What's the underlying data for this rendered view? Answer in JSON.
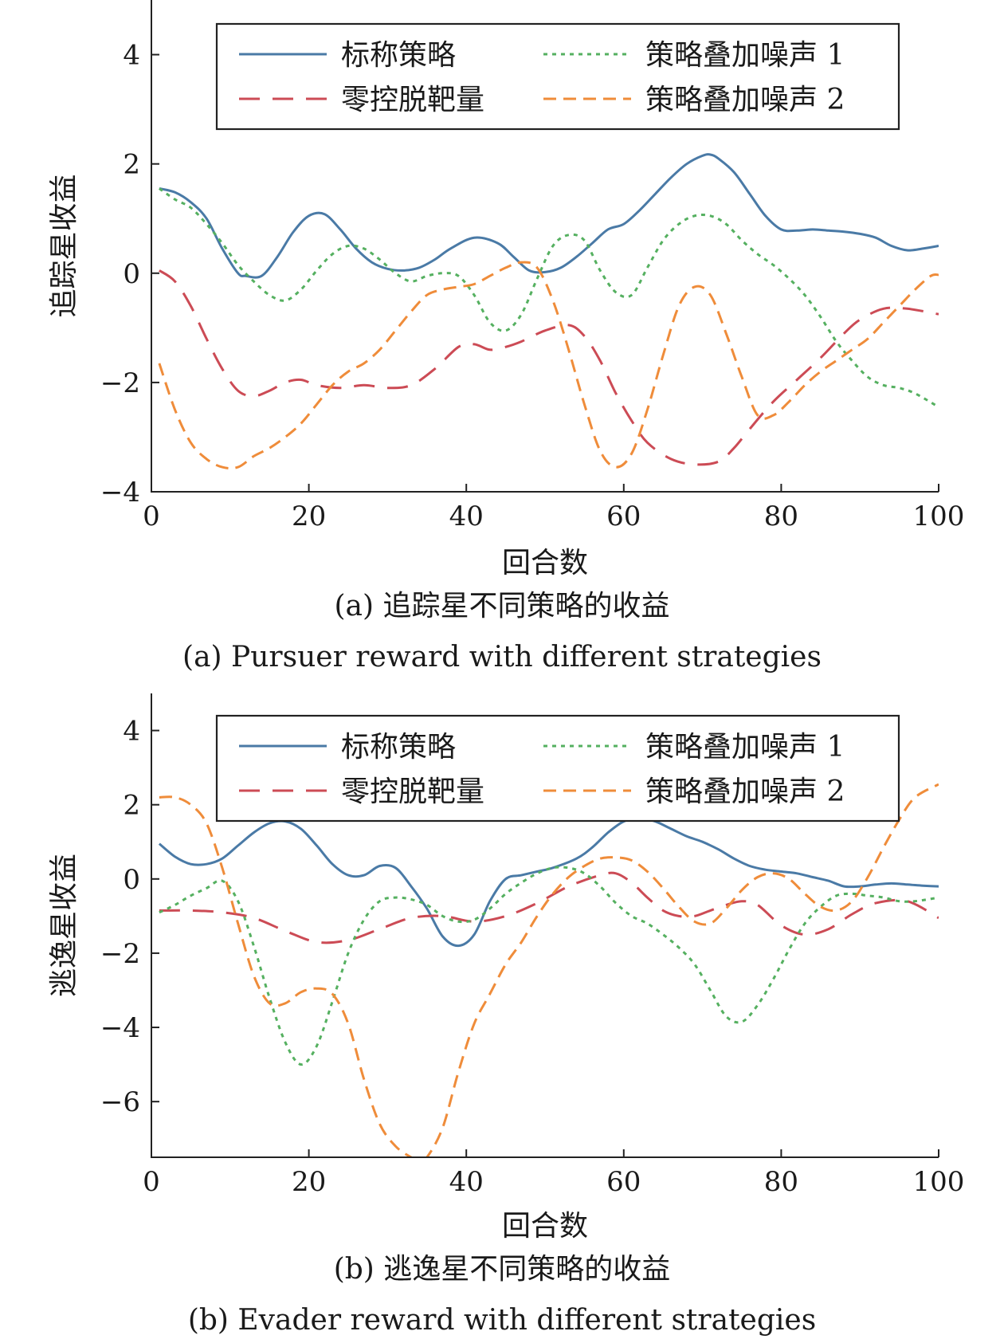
{
  "figure": {
    "panels": [
      {
        "id": "a",
        "caption_cn": "(a) 追踪星不同策略的收益",
        "caption_en": "(a) Pursuer reward with different strategies"
      },
      {
        "id": "b",
        "caption_cn": "(b) 逃逸星不同策略的收益",
        "caption_en": "(b) Evader reward with different strategies"
      }
    ]
  },
  "series_styles": [
    {
      "color": "#4a7aa6",
      "dash": ""
    },
    {
      "color": "#cc4b55",
      "dash": "26,16"
    },
    {
      "color": "#55b060",
      "dash": "5,6"
    },
    {
      "color": "#ef8c3a",
      "dash": "16,9"
    }
  ],
  "chart_data": [
    {
      "type": "line",
      "xlabel": "回合数",
      "ylabel": "追踪星收益",
      "xlim": [
        0,
        100
      ],
      "ylim": [
        -4,
        5
      ],
      "xticks": [
        0,
        20,
        40,
        60,
        80,
        100
      ],
      "yticks": [
        -4,
        -2,
        0,
        2,
        4
      ],
      "xtick_labels": [
        "0",
        "20",
        "40",
        "60",
        "80",
        "100"
      ],
      "ytick_labels": [
        "−4",
        "−2",
        "0",
        "2",
        "4"
      ],
      "legend_position": "top-right",
      "series": [
        {
          "name": "标称策略",
          "x": [
            1,
            3,
            5,
            7,
            9,
            11,
            12,
            14,
            16,
            18,
            20,
            22,
            24,
            26,
            28,
            30,
            32,
            34,
            36,
            38,
            41,
            44,
            46,
            48,
            50,
            52,
            54,
            56,
            58,
            60,
            62,
            64,
            66,
            68,
            70,
            71,
            72,
            74,
            76,
            78,
            80,
            82,
            84,
            86,
            88,
            90,
            92,
            94,
            96,
            98,
            100
          ],
          "y": [
            1.55,
            1.48,
            1.3,
            1.0,
            0.45,
            0.0,
            -0.05,
            -0.05,
            0.3,
            0.75,
            1.05,
            1.08,
            0.8,
            0.45,
            0.2,
            0.08,
            0.05,
            0.1,
            0.25,
            0.45,
            0.65,
            0.55,
            0.3,
            0.05,
            0.02,
            0.1,
            0.3,
            0.55,
            0.8,
            0.9,
            1.15,
            1.45,
            1.75,
            2.0,
            2.15,
            2.17,
            2.1,
            1.85,
            1.45,
            1.05,
            0.8,
            0.78,
            0.8,
            0.78,
            0.76,
            0.72,
            0.65,
            0.5,
            0.42,
            0.45,
            0.5
          ]
        },
        {
          "name": "零控脱靶量",
          "x": [
            1,
            3,
            5,
            7,
            9,
            11,
            13,
            15,
            17,
            19,
            21,
            24,
            27,
            30,
            33,
            36,
            39,
            41,
            43,
            45,
            47,
            50,
            53,
            55,
            57,
            59,
            61,
            63,
            66,
            69,
            72,
            74,
            76,
            79,
            82,
            85,
            88,
            90,
            93,
            96,
            100
          ],
          "y": [
            0.05,
            -0.15,
            -0.6,
            -1.2,
            -1.75,
            -2.15,
            -2.25,
            -2.15,
            -2.0,
            -1.95,
            -2.05,
            -2.1,
            -2.05,
            -2.1,
            -2.05,
            -1.75,
            -1.35,
            -1.3,
            -1.4,
            -1.35,
            -1.25,
            -1.05,
            -0.95,
            -1.15,
            -1.6,
            -2.2,
            -2.7,
            -3.1,
            -3.4,
            -3.5,
            -3.45,
            -3.2,
            -2.85,
            -2.35,
            -1.95,
            -1.55,
            -1.1,
            -0.85,
            -0.65,
            -0.65,
            -0.75
          ]
        },
        {
          "name": "策略叠加噪声 1",
          "x": [
            1,
            3,
            5,
            7,
            9,
            11,
            13,
            15,
            17,
            19,
            21,
            23,
            25,
            27,
            29,
            31,
            33,
            35,
            37,
            39,
            41,
            43,
            45,
            47,
            49,
            51,
            53,
            55,
            57,
            59,
            61,
            63,
            65,
            67,
            69,
            71,
            73,
            75,
            77,
            79,
            81,
            83,
            85,
            87,
            89,
            91,
            93,
            95,
            97,
            100
          ],
          "y": [
            1.55,
            1.35,
            1.2,
            0.9,
            0.55,
            0.15,
            -0.15,
            -0.4,
            -0.5,
            -0.3,
            0.05,
            0.35,
            0.5,
            0.45,
            0.25,
            0.0,
            -0.15,
            -0.05,
            0.0,
            -0.05,
            -0.4,
            -0.9,
            -1.05,
            -0.75,
            -0.1,
            0.5,
            0.7,
            0.6,
            0.05,
            -0.35,
            -0.4,
            0.1,
            0.6,
            0.9,
            1.05,
            1.05,
            0.9,
            0.6,
            0.35,
            0.15,
            -0.1,
            -0.4,
            -0.8,
            -1.25,
            -1.6,
            -1.9,
            -2.05,
            -2.1,
            -2.2,
            -2.45
          ]
        },
        {
          "name": "策略叠加噪声 2",
          "x": [
            1,
            3,
            5,
            7,
            9,
            11,
            13,
            15,
            17,
            19,
            21,
            23,
            25,
            27,
            29,
            31,
            33,
            35,
            37,
            39,
            41,
            43,
            45,
            47,
            49,
            51,
            53,
            55,
            57,
            59,
            61,
            63,
            65,
            67,
            69,
            71,
            73,
            75,
            77,
            79,
            81,
            83,
            85,
            87,
            89,
            91,
            93,
            95,
            97,
            99,
            100
          ],
          "y": [
            -1.65,
            -2.5,
            -3.1,
            -3.4,
            -3.55,
            -3.55,
            -3.35,
            -3.2,
            -3.0,
            -2.75,
            -2.4,
            -2.05,
            -1.8,
            -1.65,
            -1.4,
            -1.05,
            -0.7,
            -0.4,
            -0.3,
            -0.25,
            -0.2,
            -0.05,
            0.1,
            0.2,
            0.1,
            -0.5,
            -1.4,
            -2.4,
            -3.25,
            -3.55,
            -3.3,
            -2.5,
            -1.5,
            -0.6,
            -0.25,
            -0.4,
            -1.1,
            -1.9,
            -2.6,
            -2.6,
            -2.35,
            -2.05,
            -1.8,
            -1.6,
            -1.4,
            -1.2,
            -0.9,
            -0.6,
            -0.3,
            -0.05,
            -0.03
          ]
        }
      ]
    },
    {
      "type": "line",
      "xlabel": "回合数",
      "ylabel": "逃逸星收益",
      "xlim": [
        0,
        100
      ],
      "ylim": [
        -7.5,
        5
      ],
      "xticks": [
        0,
        20,
        40,
        60,
        80,
        100
      ],
      "yticks": [
        -6,
        -4,
        -2,
        0,
        2,
        4
      ],
      "xtick_labels": [
        "0",
        "20",
        "40",
        "60",
        "80",
        "100"
      ],
      "ytick_labels": [
        "−6",
        "−4",
        "−2",
        "0",
        "2",
        "4"
      ],
      "legend_position": "top-right",
      "series": [
        {
          "name": "标称策略",
          "x": [
            1,
            3,
            5,
            7,
            9,
            11,
            13,
            15,
            17,
            19,
            21,
            23,
            25,
            27,
            29,
            31,
            33,
            35,
            37,
            39,
            41,
            43,
            45,
            47,
            49,
            51,
            54,
            56,
            58,
            60,
            62,
            64,
            66,
            68,
            70,
            72,
            74,
            76,
            78,
            80,
            82,
            84,
            86,
            88,
            90,
            92,
            94,
            96,
            98,
            100
          ],
          "y": [
            0.95,
            0.6,
            0.4,
            0.4,
            0.55,
            0.9,
            1.25,
            1.5,
            1.55,
            1.35,
            0.9,
            0.4,
            0.1,
            0.1,
            0.35,
            0.3,
            -0.2,
            -0.8,
            -1.55,
            -1.8,
            -1.5,
            -0.6,
            0.0,
            0.1,
            0.2,
            0.3,
            0.55,
            0.85,
            1.25,
            1.55,
            1.65,
            1.55,
            1.35,
            1.15,
            1.0,
            0.8,
            0.55,
            0.35,
            0.25,
            0.2,
            0.15,
            0.05,
            -0.05,
            -0.2,
            -0.2,
            -0.15,
            -0.12,
            -0.15,
            -0.18,
            -0.2
          ]
        },
        {
          "name": "零控脱靶量",
          "x": [
            1,
            5,
            9,
            13,
            17,
            21,
            25,
            29,
            33,
            37,
            41,
            45,
            49,
            53,
            57,
            59,
            61,
            63,
            65,
            67,
            69,
            71,
            73,
            75,
            77,
            80,
            83,
            86,
            89,
            92,
            96,
            100
          ],
          "y": [
            -0.85,
            -0.85,
            -0.9,
            -1.05,
            -1.4,
            -1.7,
            -1.65,
            -1.35,
            -1.05,
            -1.0,
            -1.15,
            -1.0,
            -0.65,
            -0.2,
            0.1,
            0.15,
            -0.1,
            -0.5,
            -0.85,
            -1.0,
            -1.0,
            -0.85,
            -0.7,
            -0.6,
            -0.7,
            -1.25,
            -1.5,
            -1.35,
            -0.95,
            -0.65,
            -0.6,
            -1.05
          ]
        },
        {
          "name": "策略叠加噪声 1",
          "x": [
            1,
            3,
            5,
            7,
            9,
            11,
            13,
            15,
            17,
            19,
            21,
            23,
            25,
            27,
            29,
            31,
            33,
            35,
            37,
            39,
            41,
            43,
            45,
            47,
            49,
            51,
            53,
            55,
            57,
            59,
            61,
            63,
            65,
            67,
            69,
            71,
            73,
            75,
            77,
            79,
            81,
            83,
            85,
            87,
            89,
            91,
            93,
            95,
            97,
            100
          ],
          "y": [
            -0.9,
            -0.7,
            -0.45,
            -0.25,
            -0.05,
            -0.6,
            -1.8,
            -3.2,
            -4.4,
            -5.0,
            -4.5,
            -3.3,
            -2.0,
            -1.1,
            -0.6,
            -0.5,
            -0.55,
            -0.7,
            -1.0,
            -1.15,
            -1.1,
            -0.8,
            -0.4,
            -0.1,
            0.15,
            0.3,
            0.3,
            0.15,
            -0.2,
            -0.65,
            -1.0,
            -1.2,
            -1.5,
            -1.85,
            -2.3,
            -3.0,
            -3.7,
            -3.85,
            -3.4,
            -2.7,
            -1.9,
            -1.2,
            -0.75,
            -0.45,
            -0.4,
            -0.45,
            -0.5,
            -0.6,
            -0.6,
            -0.5
          ]
        },
        {
          "name": "策略叠加噪声 2",
          "x": [
            1,
            3,
            5,
            7,
            9,
            11,
            13,
            15,
            17,
            19,
            21,
            23,
            25,
            27,
            29,
            31,
            33,
            34,
            35,
            37,
            39,
            41,
            43,
            45,
            47,
            49,
            51,
            53,
            55,
            57,
            59,
            61,
            63,
            65,
            67,
            69,
            71,
            73,
            75,
            77,
            79,
            81,
            83,
            85,
            87,
            89,
            91,
            93,
            95,
            97,
            100
          ],
          "y": [
            2.2,
            2.2,
            2.0,
            1.5,
            0.3,
            -1.2,
            -2.6,
            -3.35,
            -3.35,
            -3.05,
            -2.95,
            -3.1,
            -3.9,
            -5.4,
            -6.6,
            -7.2,
            -7.5,
            -7.55,
            -7.5,
            -6.7,
            -5.2,
            -3.9,
            -3.1,
            -2.3,
            -1.7,
            -1.0,
            -0.4,
            0.05,
            0.35,
            0.55,
            0.58,
            0.5,
            0.2,
            -0.25,
            -0.75,
            -1.15,
            -1.2,
            -0.8,
            -0.3,
            0.05,
            0.15,
            0.0,
            -0.4,
            -0.75,
            -0.85,
            -0.6,
            0.05,
            0.85,
            1.6,
            2.2,
            2.55
          ]
        }
      ]
    }
  ]
}
